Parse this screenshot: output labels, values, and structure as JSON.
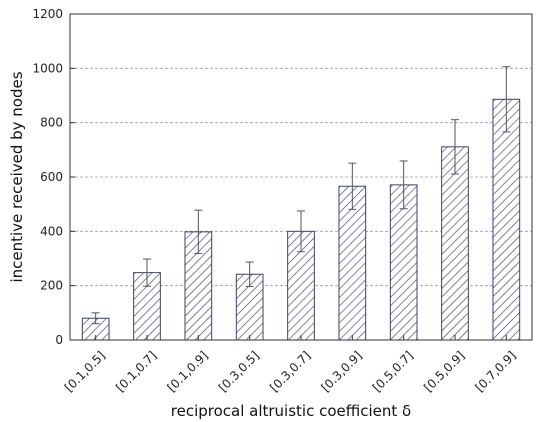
{
  "chart_data": {
    "type": "bar",
    "title": "",
    "xlabel": "reciprocal altruistic coefficient δ",
    "ylabel": "incentive received by nodes",
    "categories": [
      "[0.1,0.5]",
      "[0.1,0.7]",
      "[0.1,0.9]",
      "[0.3,0.5]",
      "[0.3,0.7]",
      "[0.3,0.9]",
      "[0.5,0.7]",
      "[0.5,0.9]",
      "[0.7,0.9]"
    ],
    "values": [
      80,
      248,
      398,
      242,
      400,
      566,
      571,
      711,
      886
    ],
    "error": [
      20,
      50,
      80,
      45,
      75,
      85,
      88,
      100,
      120
    ],
    "ylim": [
      0,
      1200
    ],
    "yticks": [
      0,
      200,
      400,
      600,
      800,
      1000,
      1200
    ],
    "grid": true,
    "bar_pattern": "diagonal-hatch",
    "colors": {
      "bar_stroke": "#3a4466",
      "hatch": "#3a4466",
      "grid": "#9a9a9a",
      "axis": "#333333",
      "error_bar": "#555555"
    }
  }
}
